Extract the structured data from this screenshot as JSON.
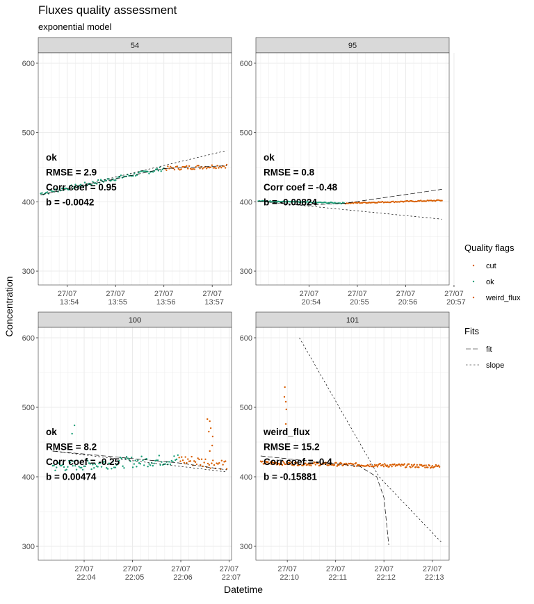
{
  "title": "Fluxes quality assessment",
  "subtitle": "exponential model",
  "xlabel": "Datetime",
  "ylabel": "Concentration",
  "colors": {
    "cut": "#d95f02",
    "ok": "#1b9e77",
    "weird_flux": "#d95f02",
    "strip_bg": "#d9d9d9",
    "grid": "#ebebeb",
    "fit_line": "#000000"
  },
  "legend": {
    "quality_title": "Quality flags",
    "quality_items": [
      {
        "label": "cut",
        "color": "#d95f02"
      },
      {
        "label": "ok",
        "color": "#1b9e77"
      },
      {
        "label": "weird_flux",
        "color": "#d95f02"
      }
    ],
    "fits_title": "Fits",
    "fits_items": [
      {
        "label": "fit",
        "dash": "long"
      },
      {
        "label": "slope",
        "dash": "short"
      }
    ]
  },
  "chart_data": [
    {
      "type": "scatter",
      "facet": "54",
      "ylim": [
        280,
        615
      ],
      "yticks": [
        300,
        400,
        500,
        600
      ],
      "xticks": [
        "27/07\n13:54",
        "27/07\n13:55",
        "27/07\n13:56",
        "27/07\n13:57"
      ],
      "xlim_min": [
        -0.6,
        3.4
      ],
      "annotation": [
        "ok",
        "RMSE = 2.9",
        "Corr coef = 0.95",
        "b = -0.0042"
      ],
      "ok_range": [
        -0.55,
        2.0
      ],
      "cut_range": [
        2.0,
        3.3
      ],
      "conc_start": 412,
      "conc_mid": 448,
      "conc_end": 452,
      "noise": 3,
      "fit": [
        [
          -0.55,
          410
        ],
        [
          2.0,
          448
        ],
        [
          3.3,
          452
        ]
      ],
      "slope": [
        [
          -0.55,
          410
        ],
        [
          3.3,
          474
        ]
      ]
    },
    {
      "type": "scatter",
      "facet": "95",
      "ylim": [
        280,
        615
      ],
      "yticks": [
        300,
        400,
        500,
        600
      ],
      "xticks": [
        "27/07\n20:54",
        "27/07\n20:55",
        "27/07\n20:56",
        "27/07\n20:57"
      ],
      "xlim_min": [
        -1.1,
        2.9
      ],
      "annotation": [
        "ok",
        "RMSE = 0.8",
        "Corr coef = -0.48",
        "b = -0.00824"
      ],
      "ok_range": [
        -1.05,
        0.75
      ],
      "cut_range": [
        0.75,
        2.75
      ],
      "conc_start": 401,
      "conc_mid": 398,
      "conc_end": 402,
      "noise": 0.8,
      "fit": [
        [
          -1.05,
          401
        ],
        [
          -0.1,
          395
        ],
        [
          0.75,
          398
        ],
        [
          2.75,
          418
        ]
      ],
      "slope": [
        [
          -1.05,
          401
        ],
        [
          2.75,
          375
        ]
      ]
    },
    {
      "type": "scatter",
      "facet": "100",
      "ylim": [
        280,
        615
      ],
      "yticks": [
        300,
        400,
        500,
        600
      ],
      "xticks": [
        "27/07\n22:04",
        "27/07\n22:05",
        "27/07\n22:06",
        "27/07\n22:07"
      ],
      "xlim_min": [
        -0.95,
        3.05
      ],
      "annotation": [
        "ok",
        "RMSE = 8.2",
        "Corr coef = -0.25",
        "b = 0.00474"
      ],
      "ok_range": [
        -0.65,
        1.95
      ],
      "cut_range": [
        1.95,
        2.95
      ],
      "conc_start": 415,
      "conc_mid": 425,
      "conc_end": 418,
      "noise": 8,
      "outliers": [
        [
          -0.2,
          474
        ],
        [
          -0.25,
          462
        ],
        [
          2.55,
          483
        ],
        [
          2.6,
          480
        ],
        [
          2.62,
          470
        ],
        [
          2.58,
          465
        ],
        [
          2.66,
          458
        ],
        [
          2.65,
          445
        ],
        [
          2.6,
          437
        ]
      ],
      "fit": [
        [
          -0.65,
          437
        ],
        [
          1.95,
          420
        ],
        [
          2.95,
          410
        ]
      ],
      "slope": [
        [
          -0.65,
          437
        ],
        [
          2.95,
          407
        ]
      ]
    },
    {
      "type": "scatter",
      "facet": "101",
      "ylim": [
        280,
        615
      ],
      "yticks": [
        300,
        400,
        500,
        600
      ],
      "xticks": [
        "27/07\n22:10",
        "27/07\n22:11",
        "27/07\n22:12",
        "27/07\n22:13"
      ],
      "xlim_min": [
        -0.65,
        3.35
      ],
      "annotation": [
        "weird_flux",
        "RMSE = 15.2",
        "Corr coef = -0.4",
        "b = -0.15881"
      ],
      "weird_range": [
        -0.55,
        3.15
      ],
      "conc_start": 420,
      "conc_mid": 416,
      "conc_end": 415,
      "noise": 2.5,
      "outliers": [
        [
          -0.05,
          529
        ],
        [
          -0.06,
          515
        ],
        [
          -0.03,
          508
        ],
        [
          -0.02,
          497
        ],
        [
          -0.03,
          476
        ]
      ],
      "fit": [
        [
          -0.55,
          430
        ],
        [
          1.5,
          415
        ],
        [
          1.85,
          400
        ],
        [
          2.0,
          370
        ],
        [
          2.1,
          302
        ]
      ],
      "slope": [
        [
          0.25,
          600
        ],
        [
          1.9,
          400
        ],
        [
          3.2,
          305
        ]
      ]
    }
  ]
}
